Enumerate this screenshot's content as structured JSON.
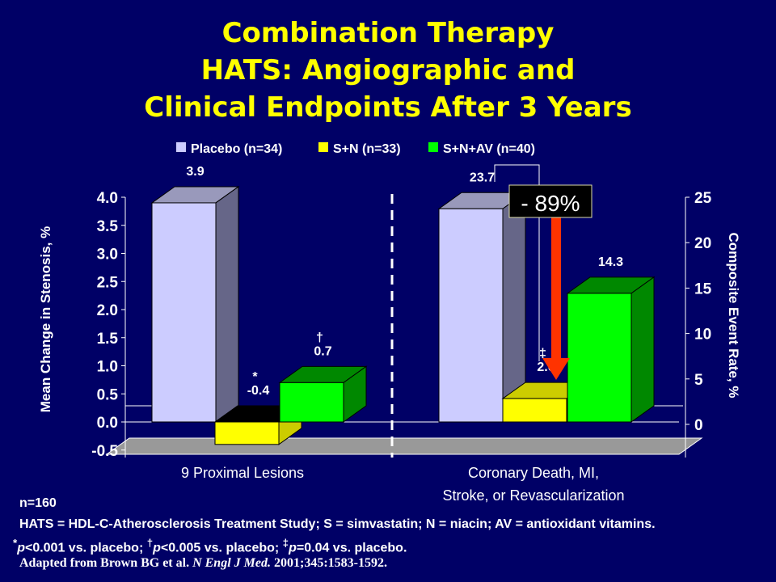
{
  "title": [
    "Combination Therapy",
    "HATS: Angiographic and",
    "Clinical Endpoints After 3 Years"
  ],
  "chart_data": {
    "type": "bar",
    "legend": {
      "placement": "top",
      "entries": [
        "Placebo (n=34)",
        "S+N (n=33)",
        "S+N+AV (n=40)"
      ]
    },
    "colors": [
      "#ccccff",
      "#ffff00",
      "#00ff00"
    ],
    "groups": [
      {
        "label": "9 Proximal Lesions",
        "axis": "left",
        "values": [
          3.9,
          -0.4,
          0.7
        ],
        "labels": [
          "3.9",
          "-0.4",
          "0.7"
        ],
        "marks": [
          "",
          "*",
          "†"
        ]
      },
      {
        "label": "Coronary Death, MI, Stroke, or Revascularization",
        "label_lines": [
          "Coronary Death, MI,",
          "Stroke, or Revascularization"
        ],
        "axis": "right",
        "values": [
          23.7,
          2.6,
          14.3
        ],
        "labels": [
          "23.7",
          "2.6",
          "14.3"
        ],
        "marks": [
          "",
          "‡",
          ""
        ]
      }
    ],
    "left_axis": {
      "label": "Mean Change in Stenosis, %",
      "ylim": [
        -0.5,
        4.0
      ],
      "ticks": [
        "-0.5",
        "0.0",
        "0.5",
        "1.0",
        "1.5",
        "2.0",
        "2.5",
        "3.0",
        "3.5",
        "4.0"
      ]
    },
    "right_axis": {
      "label": "Composite Event Rate, %",
      "ylim": [
        0,
        25
      ],
      "ticks": [
        "0",
        "5",
        "10",
        "15",
        "20",
        "25"
      ]
    },
    "annotation": "- 89%"
  },
  "footer": {
    "n": "n=160",
    "abbrev": "HATS = HDL-C-Atherosclerosis Treatment Study; S = simvastatin; N = niacin; AV = antioxidant vitamins.",
    "pvalues": {
      "m1": "*",
      "p1": "p",
      "t1": "<0.001 vs. placebo; ",
      "m2": "†",
      "p2": "p",
      "t2": "<0.005 vs. placebo; ",
      "m3": "‡",
      "p3": "p",
      "t3": "=0.04 vs. placebo."
    },
    "citation": {
      "pre": "Adapted from Brown BG et al. ",
      "journal": "N Engl J Med.",
      "post": " 2001;345:1583-1592."
    }
  }
}
